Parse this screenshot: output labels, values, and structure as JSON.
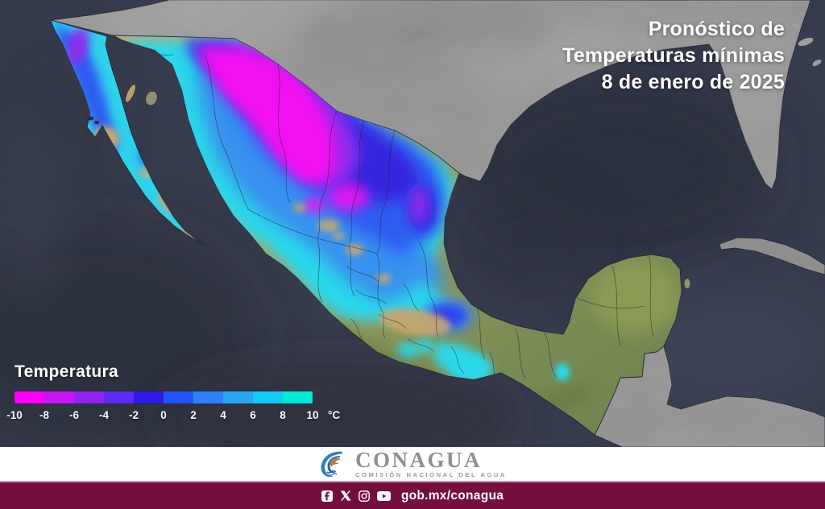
{
  "title": {
    "line1": "Pronóstico de",
    "line2": "Temperaturas mínimas",
    "line3": "8 de enero de 2025"
  },
  "legend": {
    "label": "Temperatura",
    "unit": "°C",
    "tick_labels": [
      "-10",
      "-8",
      "-6",
      "-4",
      "-2",
      "0",
      "2",
      "4",
      "6",
      "8",
      "10"
    ],
    "segment_colors": [
      "#fb00f5",
      "#c318f0",
      "#9025f0",
      "#5b2cef",
      "#2f1be5",
      "#2453f6",
      "#2e80f5",
      "#2aa5f2",
      "#16c9f0",
      "#04e8d6"
    ]
  },
  "map": {
    "colors": {
      "ocean": "#2a2f42",
      "foreign_land": "#909090",
      "terrain_green": "#74874a",
      "terrain_tan": "#caa76a",
      "brand_maroon": "#750e3f"
    }
  },
  "footer": {
    "logo_text": "CONAGUA",
    "logo_subtitle": "COMISIÓN NACIONAL DEL AGUA",
    "link": "gob.mx/conagua",
    "social": [
      "facebook",
      "x",
      "instagram",
      "youtube"
    ]
  }
}
